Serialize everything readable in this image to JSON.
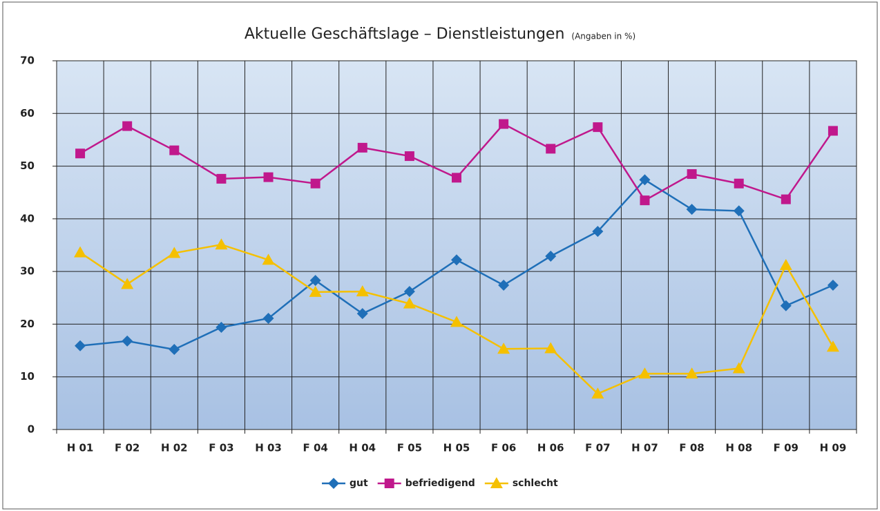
{
  "chart_data": {
    "type": "line",
    "title": "Aktuelle Geschäftslage – Dienstleistungen",
    "subtitle": "(Angaben in %)",
    "categories": [
      "H 01",
      "F 02",
      "H 02",
      "F 03",
      "H 03",
      "F 04",
      "H 04",
      "F 05",
      "H 05",
      "F 06",
      "H 06",
      "F 07",
      "H 07",
      "F 08",
      "H 08",
      "F 09",
      "H 09"
    ],
    "series": [
      {
        "name": "gut",
        "color": "#1f6fb8",
        "marker": "diamond",
        "values": [
          15.9,
          16.8,
          15.2,
          19.4,
          21.1,
          28.3,
          22.0,
          26.2,
          32.2,
          27.4,
          32.9,
          37.6,
          47.4,
          41.8,
          41.5,
          23.5,
          27.4
        ]
      },
      {
        "name": "befriedigend",
        "color": "#c0188c",
        "marker": "square",
        "values": [
          52.4,
          57.6,
          53.0,
          47.6,
          47.9,
          46.7,
          53.5,
          51.9,
          47.8,
          58.0,
          53.3,
          57.4,
          43.5,
          48.5,
          46.7,
          43.7,
          56.7
        ]
      },
      {
        "name": "schlecht",
        "color": "#f5c000",
        "marker": "triangle",
        "values": [
          33.6,
          27.6,
          33.5,
          35.1,
          32.2,
          26.1,
          26.2,
          23.9,
          20.4,
          15.3,
          15.4,
          6.8,
          10.6,
          10.6,
          11.6,
          31.2,
          15.7
        ]
      }
    ],
    "ylim": [
      0,
      70
    ],
    "yticks": [
      0,
      10,
      20,
      30,
      40,
      50,
      60,
      70
    ],
    "grid": true,
    "legend": "bottom"
  }
}
